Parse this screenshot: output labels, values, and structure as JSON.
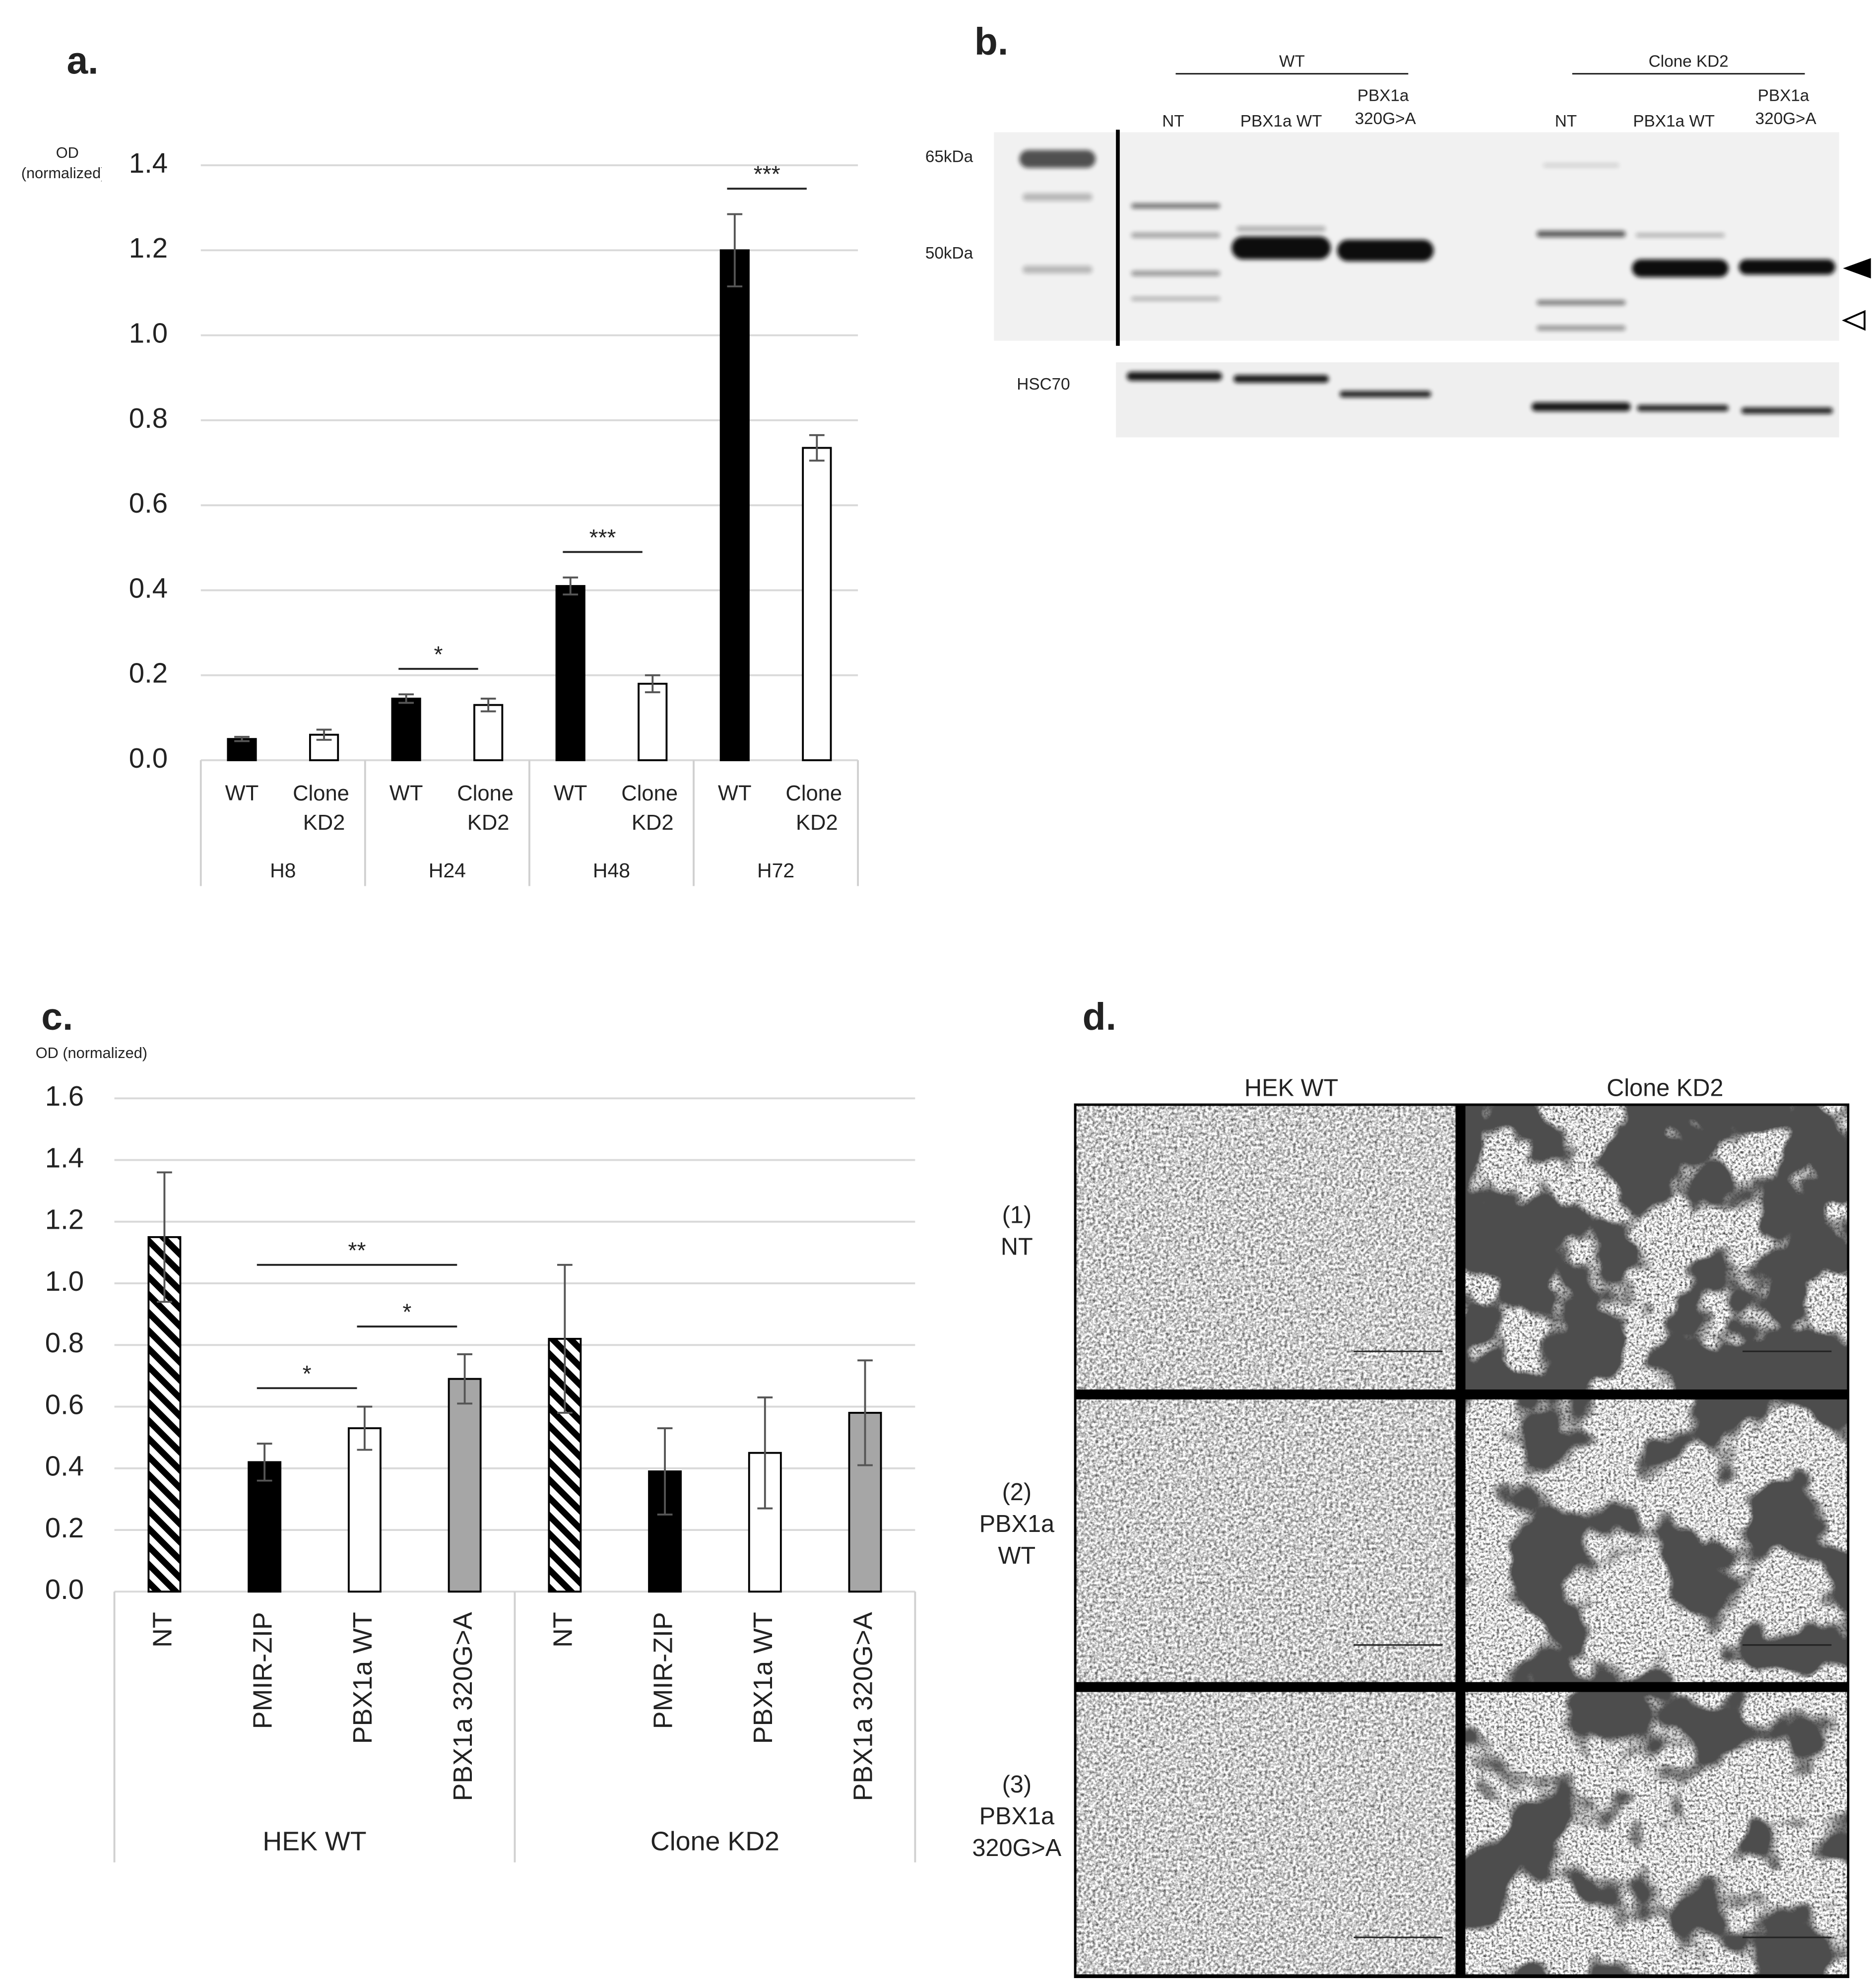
{
  "chart_data": [
    {
      "type": "bar",
      "panel": "a.",
      "y_label": [
        "OD",
        "(normalized)"
      ],
      "categories": [
        "H8",
        "H24",
        "H48",
        "H72"
      ],
      "series": [
        {
          "name": "WT",
          "color": "#000000",
          "values": [
            0.05,
            0.145,
            0.41,
            1.2
          ],
          "errors": [
            0.005,
            0.01,
            0.02,
            0.085
          ]
        },
        {
          "name": "Clone KD2",
          "color": "#ffffff",
          "values": [
            0.06,
            0.13,
            0.18,
            0.735
          ],
          "errors": [
            0.012,
            0.015,
            0.02,
            0.03
          ]
        }
      ],
      "ylim": [
        0,
        1.4
      ],
      "yticks": [
        {
          "value": 0,
          "label": "0.0"
        },
        0.2,
        0.4,
        0.6,
        0.8,
        {
          "value": 1,
          "label": "1.0"
        },
        1.2,
        1.4
      ],
      "grid": true,
      "significance": [
        {
          "category": "H24",
          "between": [
            "WT",
            "Clone KD2"
          ],
          "label": "*"
        },
        {
          "category": "H48",
          "between": [
            "WT",
            "Clone KD2"
          ],
          "label": "***"
        },
        {
          "category": "H72",
          "between": [
            "WT",
            "Clone KD2"
          ],
          "label": "***"
        }
      ]
    },
    {
      "type": "bar",
      "panel": "c.",
      "y_label": [
        "OD (normalized)"
      ],
      "categories": [
        "HEK WT",
        "Clone KD2"
      ],
      "series": [
        {
          "name": "NT",
          "color": "#000000",
          "hatch": true,
          "values": [
            1.15,
            0.82
          ],
          "errors": [
            0.21,
            0.24
          ]
        },
        {
          "name": "PMIR-ZIP",
          "color": "#000000",
          "values": [
            0.42,
            0.39
          ],
          "errors": [
            0.06,
            0.14
          ]
        },
        {
          "name": "PBX1a WT",
          "color": "#ffffff",
          "values": [
            0.53,
            0.45
          ],
          "errors": [
            0.07,
            0.18
          ]
        },
        {
          "name": "PBX1a 320G>A",
          "color": "#a6a6a6",
          "values": [
            0.69,
            0.58
          ],
          "errors": [
            0.08,
            0.17
          ]
        }
      ],
      "ylim": [
        0,
        1.6
      ],
      "yticks": [
        {
          "value": 0,
          "label": "0.0"
        },
        0.2,
        0.4,
        0.6,
        0.8,
        {
          "value": 1,
          "label": "1.0"
        },
        1.2,
        1.4,
        1.6
      ],
      "grid": true,
      "significance": [
        {
          "category": "HEK WT",
          "between": [
            "PMIR-ZIP",
            "PBX1a WT"
          ],
          "label": "*"
        },
        {
          "category": "HEK WT",
          "between": [
            "PBX1a WT",
            "PBX1a 320G>A"
          ],
          "label": "*"
        },
        {
          "category": "HEK WT",
          "between": [
            "PMIR-ZIP",
            "PBX1a 320G>A"
          ],
          "label": "**"
        }
      ]
    }
  ],
  "blot": {
    "label": "b.",
    "groups": [
      {
        "name": "WT",
        "lanes": [
          "NT",
          "PBX1a WT",
          "PBX1a 320G>A"
        ]
      },
      {
        "name": "Clone KD2",
        "lanes": [
          "NT",
          "PBX1a WT",
          "PBX1a 320G>A"
        ]
      }
    ],
    "markers": [
      "65kDa",
      "50kDa"
    ],
    "loading_control": "HSC70"
  },
  "micrographs": {
    "label": "d.",
    "columns": [
      "HEK WT",
      "Clone KD2"
    ],
    "rows": [
      [
        "(1)",
        "NT"
      ],
      [
        "(2)",
        "PBX1a",
        "WT"
      ],
      [
        "(3)",
        "PBX1a",
        "320G>A"
      ]
    ]
  }
}
